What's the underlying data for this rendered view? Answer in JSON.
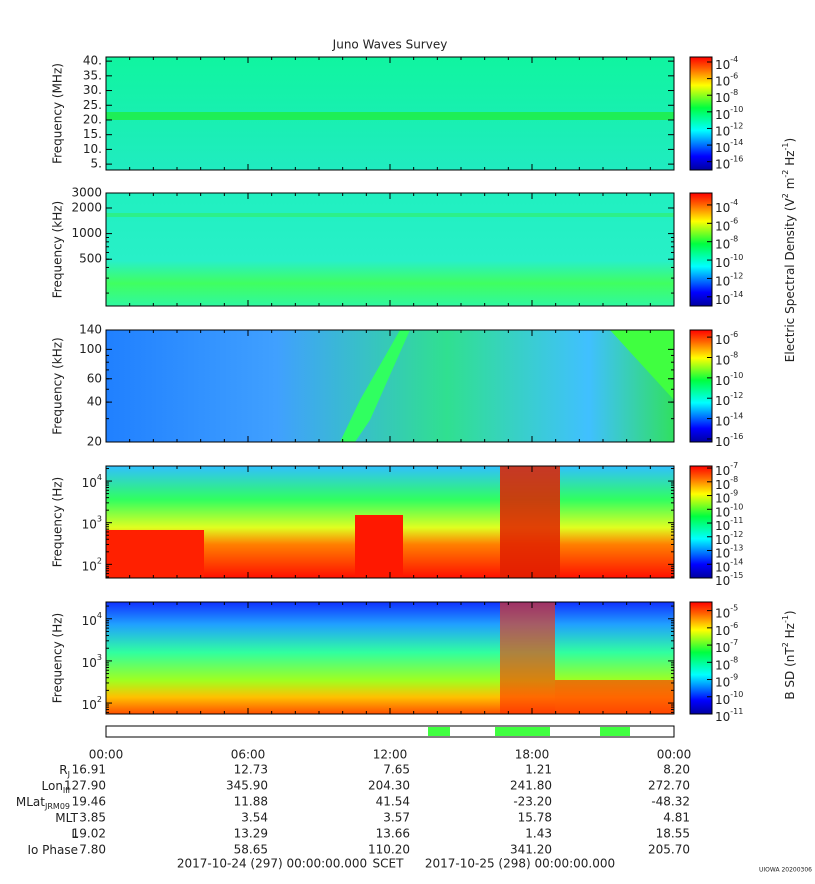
{
  "title": "Juno Waves Survey",
  "panels": [
    {
      "ylabel": "Frequency (MHz)",
      "log": false,
      "ylim": [
        3,
        41.4
      ],
      "yticks": [
        {
          "value": 40,
          "label": "40."
        },
        {
          "value": 35,
          "label": "35."
        },
        {
          "value": 30,
          "label": "30."
        },
        {
          "value": 25,
          "label": "25."
        },
        {
          "value": 20,
          "label": "20."
        },
        {
          "value": 15,
          "label": "15."
        },
        {
          "value": 10,
          "label": "10."
        },
        {
          "value": 5,
          "label": "5."
        }
      ],
      "colorbar": {
        "base": "10",
        "lim": [
          -17,
          -3.4
        ],
        "ticks": [
          -4,
          -6,
          -8,
          -10,
          -12,
          -14,
          -16
        ]
      }
    },
    {
      "ylabel": "Frequency (kHz)",
      "log": true,
      "ylim": [
        141,
        3000
      ],
      "yticks": [
        {
          "value": 3000,
          "label": "3000"
        },
        {
          "value": 2000,
          "label": "2000"
        },
        {
          "value": 1000,
          "label": "1000"
        },
        {
          "value": 500,
          "label": "500"
        }
      ],
      "colorbar": {
        "base": "10",
        "lim": [
          -15,
          -2.7
        ],
        "ticks": [
          -4,
          -6,
          -8,
          -10,
          -12,
          -14
        ]
      }
    },
    {
      "ylabel": "Frequency (kHz)",
      "log": true,
      "ylim": [
        20,
        140
      ],
      "yticks": [
        {
          "value": 140,
          "label": "140"
        },
        {
          "value": 100,
          "label": "100"
        },
        {
          "value": 60,
          "label": "60"
        },
        {
          "value": 40,
          "label": "40"
        },
        {
          "value": 20,
          "label": "20"
        }
      ],
      "colorbar": {
        "base": "10",
        "lim": [
          -16.3,
          -5.3
        ],
        "ticks": [
          -6,
          -8,
          -10,
          -12,
          -14,
          -16
        ]
      }
    },
    {
      "ylabel": "Frequency (Hz)",
      "log": true,
      "ylim": [
        47,
        23000
      ],
      "yticks": [
        {
          "value": 10000,
          "base": "10",
          "exp": "4"
        },
        {
          "value": 1000,
          "base": "10",
          "exp": "3"
        },
        {
          "value": 100,
          "base": "10",
          "exp": "2"
        }
      ],
      "colorbar": {
        "base": "10",
        "lim": [
          -15,
          -6.85
        ],
        "ticks": [
          -7,
          -8,
          -9,
          -10,
          -11,
          -12,
          -13,
          -14,
          -15
        ]
      }
    },
    {
      "ylabel": "Frequency (Hz)",
      "log": true,
      "ylim": [
        55,
        25000
      ],
      "yticks": [
        {
          "value": 10000,
          "base": "10",
          "exp": "4"
        },
        {
          "value": 1000,
          "base": "10",
          "exp": "3"
        },
        {
          "value": 100,
          "base": "10",
          "exp": "2"
        }
      ],
      "colorbar": {
        "base": "10",
        "lim": [
          -11,
          -4.5
        ],
        "ticks": [
          -5,
          -6,
          -7,
          -8,
          -9,
          -10,
          -11
        ]
      }
    }
  ],
  "colorbar_titles": [
    [
      "Electric Spectral Density (V",
      "2",
      " m",
      "-2",
      " Hz",
      "-1",
      ")"
    ],
    [
      "B SD (nT",
      "2",
      " Hz",
      "-1",
      ")"
    ]
  ],
  "xlim": [
    0,
    24
  ],
  "xticks": [
    {
      "value": 0,
      "label": "00:00"
    },
    {
      "value": 6,
      "label": "06:00"
    },
    {
      "value": 12,
      "label": "12:00"
    },
    {
      "value": 18,
      "label": "18:00"
    },
    {
      "value": 24,
      "label": "00:00"
    }
  ],
  "ephemeris": [
    {
      "label": "R",
      "sub": "J",
      "values": [
        "16.91",
        "12.73",
        "7.65",
        "1.21",
        "8.20"
      ]
    },
    {
      "label": "Lon",
      "sub": "III",
      "values": [
        "127.90",
        "345.90",
        "204.30",
        "241.80",
        "272.70"
      ]
    },
    {
      "label": "MLat",
      "sub": "JRM09",
      "values": [
        "19.46",
        "11.88",
        "41.54",
        "-23.20",
        "-48.32"
      ]
    },
    {
      "label": "MLT",
      "values": [
        "3.85",
        "3.54",
        "3.57",
        "15.78",
        "4.81"
      ]
    },
    {
      "label": "L",
      "values": [
        "19.02",
        "13.29",
        "13.66",
        "1.43",
        "18.55"
      ]
    },
    {
      "label": "Io Phase",
      "values": [
        "7.80",
        "58.65",
        "110.20",
        "341.20",
        "205.70"
      ]
    }
  ],
  "footer": {
    "start": "2017-10-24 (297) 00:00:00.000",
    "scet": "SCET",
    "end": "2017-10-25 (298) 00:00:00.000"
  },
  "credit": "UIOWA 20200306"
}
